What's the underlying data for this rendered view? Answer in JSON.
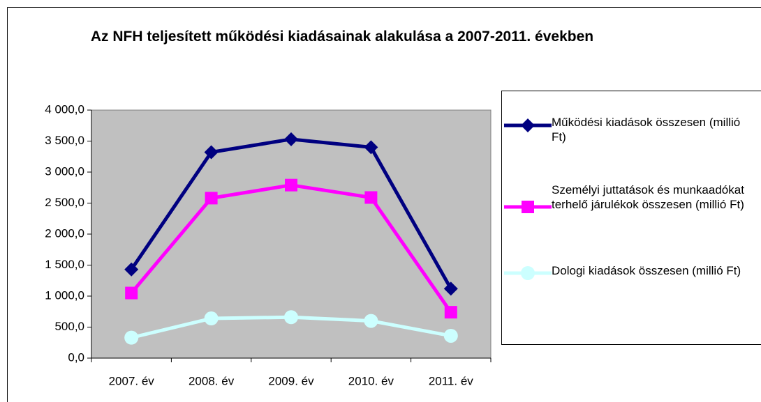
{
  "chart_data": {
    "type": "line",
    "title": "Az NFH teljesített működési kiadásainak alakulása a 2007-2011. években",
    "categories": [
      "2007. év",
      "2008. év",
      "2009. év",
      "2010. év",
      "2011. év"
    ],
    "series": [
      {
        "name": "Működési kiadások összesen (millió Ft)",
        "color": "#000080",
        "marker": "diamond",
        "values": [
          1430,
          3320,
          3530,
          3400,
          1120
        ]
      },
      {
        "name": "Személyi juttatások és munkaadókat terhelő járulékok összesen (millió Ft)",
        "color": "#ff00ff",
        "marker": "square",
        "values": [
          1050,
          2580,
          2790,
          2590,
          740
        ]
      },
      {
        "name": "Dologi kiadások összesen (millió Ft)",
        "color": "#ccffff",
        "marker": "circle",
        "values": [
          330,
          640,
          660,
          600,
          360
        ]
      }
    ],
    "ylim": [
      0,
      4000
    ],
    "yticks": [
      {
        "value": 0,
        "label": "0,0"
      },
      {
        "value": 500,
        "label": "500,0"
      },
      {
        "value": 1000,
        "label": "1 000,0"
      },
      {
        "value": 1500,
        "label": "1 500,0"
      },
      {
        "value": 2000,
        "label": "2 000,0"
      },
      {
        "value": 2500,
        "label": "2 500,0"
      },
      {
        "value": 3000,
        "label": "3 000,0"
      },
      {
        "value": 3500,
        "label": "3 500,0"
      },
      {
        "value": 4000,
        "label": "4 000,0"
      }
    ],
    "plot_background": "#c0c0c0",
    "legend": "right"
  }
}
